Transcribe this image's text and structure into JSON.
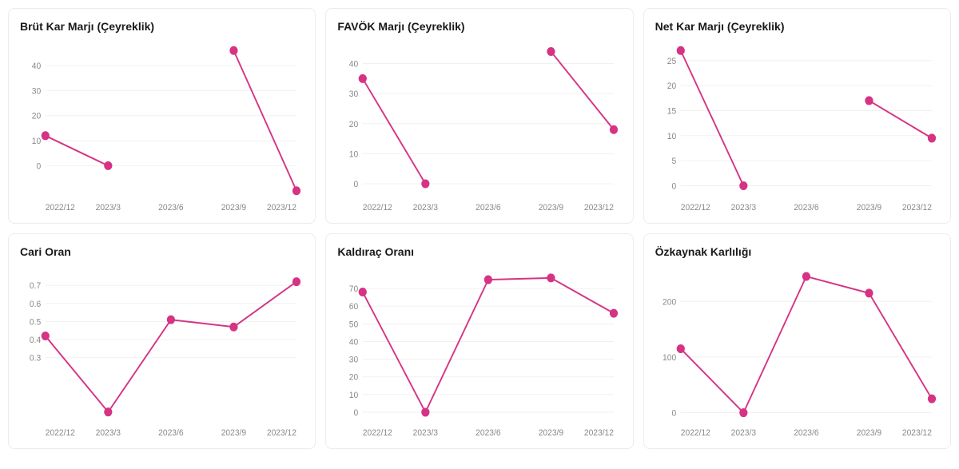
{
  "layout": {
    "rows": 2,
    "cols": 3
  },
  "series_color": "#d63384",
  "dot_fill": "#d63384",
  "dot_stroke": "#d63384",
  "dot_radius": 4.5,
  "line_width": 2,
  "grid_color": "#f0f0f0",
  "text_color": "#888888",
  "title_color": "#1a1a1a",
  "font_size_label": 11,
  "font_size_title": 14,
  "charts": [
    {
      "id": "brut-kar-marji",
      "type": "line",
      "title": "Brüt Kar Marjı (Çeyreklik)",
      "x_categories": [
        "2022/12",
        "2023/3",
        "2023/6",
        "2023/9",
        "2023/12"
      ],
      "y_ticks": [
        0,
        10,
        20,
        30,
        40
      ],
      "ylim": [
        -12,
        48
      ],
      "points": [
        {
          "x": "2022/12",
          "y": 12
        },
        {
          "x": "2023/3",
          "y": 0
        },
        {
          "x": "2023/9",
          "y": 46
        },
        {
          "x": "2023/12",
          "y": -10
        }
      ],
      "segments": [
        [
          0,
          1
        ],
        [
          2,
          3
        ]
      ]
    },
    {
      "id": "favok-marji",
      "type": "line",
      "title": "FAVÖK Marjı (Çeyreklik)",
      "x_categories": [
        "2022/12",
        "2023/3",
        "2023/6",
        "2023/9",
        "2023/12"
      ],
      "y_ticks": [
        0,
        10,
        20,
        30,
        40
      ],
      "ylim": [
        -4,
        46
      ],
      "points": [
        {
          "x": "2022/12",
          "y": 35
        },
        {
          "x": "2023/3",
          "y": 0
        },
        {
          "x": "2023/9",
          "y": 44
        },
        {
          "x": "2023/12",
          "y": 18
        }
      ],
      "segments": [
        [
          0,
          1
        ],
        [
          2,
          3
        ]
      ]
    },
    {
      "id": "net-kar-marji",
      "type": "line",
      "title": "Net Kar Marjı (Çeyreklik)",
      "x_categories": [
        "2022/12",
        "2023/3",
        "2023/6",
        "2023/9",
        "2023/12"
      ],
      "y_ticks": [
        0,
        5,
        10,
        15,
        20,
        25
      ],
      "ylim": [
        -2,
        28
      ],
      "points": [
        {
          "x": "2022/12",
          "y": 27
        },
        {
          "x": "2023/3",
          "y": 0
        },
        {
          "x": "2023/9",
          "y": 17
        },
        {
          "x": "2023/12",
          "y": 9.5
        }
      ],
      "segments": [
        [
          0,
          1
        ],
        [
          2,
          3
        ]
      ]
    },
    {
      "id": "cari-oran",
      "type": "line",
      "title": "Cari Oran",
      "x_categories": [
        "2022/12",
        "2023/3",
        "2023/6",
        "2023/9",
        "2023/12"
      ],
      "y_ticks": [
        0.3,
        0.4,
        0.5,
        0.6,
        0.7
      ],
      "ylim": [
        -0.05,
        0.78
      ],
      "points": [
        {
          "x": "2022/12",
          "y": 0.42
        },
        {
          "x": "2023/3",
          "y": 0.0
        },
        {
          "x": "2023/6",
          "y": 0.51
        },
        {
          "x": "2023/9",
          "y": 0.47
        },
        {
          "x": "2023/12",
          "y": 0.72
        }
      ],
      "segments": [
        [
          0,
          1,
          2,
          3,
          4
        ]
      ]
    },
    {
      "id": "kaldirac-orani",
      "type": "line",
      "title": "Kaldıraç Oranı",
      "x_categories": [
        "2022/12",
        "2023/3",
        "2023/6",
        "2023/9",
        "2023/12"
      ],
      "y_ticks": [
        0,
        10,
        20,
        30,
        40,
        50,
        60,
        70
      ],
      "ylim": [
        -5,
        80
      ],
      "points": [
        {
          "x": "2022/12",
          "y": 68
        },
        {
          "x": "2023/3",
          "y": 0
        },
        {
          "x": "2023/6",
          "y": 75
        },
        {
          "x": "2023/9",
          "y": 76
        },
        {
          "x": "2023/12",
          "y": 56
        }
      ],
      "segments": [
        [
          0,
          1,
          2,
          3,
          4
        ]
      ]
    },
    {
      "id": "ozkaynak-karliligi",
      "type": "line",
      "title": "Özkaynak Karlılığı",
      "x_categories": [
        "2022/12",
        "2023/3",
        "2023/6",
        "2023/9",
        "2023/12"
      ],
      "y_ticks": [
        0,
        100,
        200
      ],
      "ylim": [
        -15,
        255
      ],
      "points": [
        {
          "x": "2022/12",
          "y": 115
        },
        {
          "x": "2023/3",
          "y": 0
        },
        {
          "x": "2023/6",
          "y": 245
        },
        {
          "x": "2023/9",
          "y": 215
        },
        {
          "x": "2023/12",
          "y": 25
        }
      ],
      "segments": [
        [
          0,
          1,
          2,
          3,
          4
        ]
      ]
    }
  ]
}
